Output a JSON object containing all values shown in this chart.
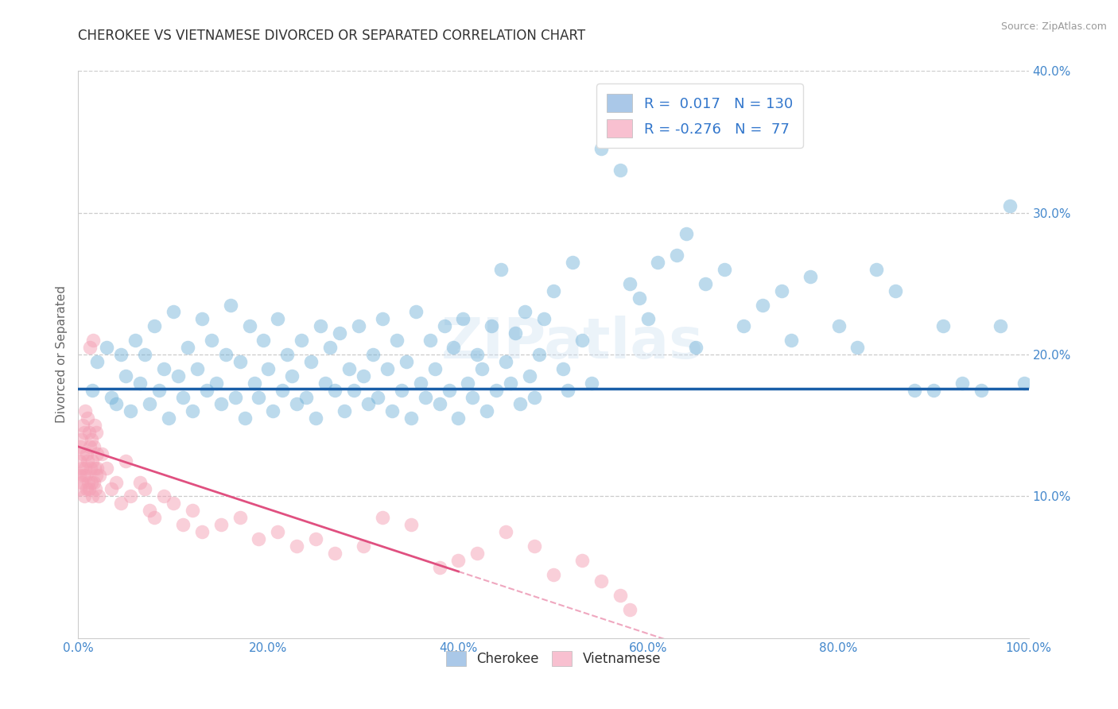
{
  "title": "CHEROKEE VS VIETNAMESE DIVORCED OR SEPARATED CORRELATION CHART",
  "source": "Source: ZipAtlas.com",
  "ylabel": "Divorced or Separated",
  "xlim": [
    0.0,
    100.0
  ],
  "ylim": [
    0.0,
    40.0
  ],
  "xticks": [
    0.0,
    20.0,
    40.0,
    60.0,
    80.0,
    100.0
  ],
  "yticks": [
    0.0,
    10.0,
    20.0,
    30.0,
    40.0
  ],
  "xtick_labels": [
    "0.0%",
    "20.0%",
    "40.0%",
    "60.0%",
    "80.0%",
    "100.0%"
  ],
  "ytick_labels": [
    "",
    "10.0%",
    "20.0%",
    "30.0%",
    "40.0%"
  ],
  "blue_R": "0.017",
  "blue_N": "130",
  "pink_R": "-0.276",
  "pink_N": "77",
  "blue_dot_color": "#6baed6",
  "pink_dot_color": "#f4a0b5",
  "blue_line_color": "#1a5fa8",
  "pink_line_color": "#e05080",
  "tick_label_color": "#4488cc",
  "watermark": "ZIPatlas",
  "legend_blue_label": "Cherokee",
  "legend_pink_label": "Vietnamese",
  "blue_scatter": [
    [
      1.5,
      17.5
    ],
    [
      2.0,
      19.5
    ],
    [
      3.0,
      20.5
    ],
    [
      3.5,
      17.0
    ],
    [
      4.0,
      16.5
    ],
    [
      4.5,
      20.0
    ],
    [
      5.0,
      18.5
    ],
    [
      5.5,
      16.0
    ],
    [
      6.0,
      21.0
    ],
    [
      6.5,
      18.0
    ],
    [
      7.0,
      20.0
    ],
    [
      7.5,
      16.5
    ],
    [
      8.0,
      22.0
    ],
    [
      8.5,
      17.5
    ],
    [
      9.0,
      19.0
    ],
    [
      9.5,
      15.5
    ],
    [
      10.0,
      23.0
    ],
    [
      10.5,
      18.5
    ],
    [
      11.0,
      17.0
    ],
    [
      11.5,
      20.5
    ],
    [
      12.0,
      16.0
    ],
    [
      12.5,
      19.0
    ],
    [
      13.0,
      22.5
    ],
    [
      13.5,
      17.5
    ],
    [
      14.0,
      21.0
    ],
    [
      14.5,
      18.0
    ],
    [
      15.0,
      16.5
    ],
    [
      15.5,
      20.0
    ],
    [
      16.0,
      23.5
    ],
    [
      16.5,
      17.0
    ],
    [
      17.0,
      19.5
    ],
    [
      17.5,
      15.5
    ],
    [
      18.0,
      22.0
    ],
    [
      18.5,
      18.0
    ],
    [
      19.0,
      17.0
    ],
    [
      19.5,
      21.0
    ],
    [
      20.0,
      19.0
    ],
    [
      20.5,
      16.0
    ],
    [
      21.0,
      22.5
    ],
    [
      21.5,
      17.5
    ],
    [
      22.0,
      20.0
    ],
    [
      22.5,
      18.5
    ],
    [
      23.0,
      16.5
    ],
    [
      23.5,
      21.0
    ],
    [
      24.0,
      17.0
    ],
    [
      24.5,
      19.5
    ],
    [
      25.0,
      15.5
    ],
    [
      25.5,
      22.0
    ],
    [
      26.0,
      18.0
    ],
    [
      26.5,
      20.5
    ],
    [
      27.0,
      17.5
    ],
    [
      27.5,
      21.5
    ],
    [
      28.0,
      16.0
    ],
    [
      28.5,
      19.0
    ],
    [
      29.0,
      17.5
    ],
    [
      29.5,
      22.0
    ],
    [
      30.0,
      18.5
    ],
    [
      30.5,
      16.5
    ],
    [
      31.0,
      20.0
    ],
    [
      31.5,
      17.0
    ],
    [
      32.0,
      22.5
    ],
    [
      32.5,
      19.0
    ],
    [
      33.0,
      16.0
    ],
    [
      33.5,
      21.0
    ],
    [
      34.0,
      17.5
    ],
    [
      34.5,
      19.5
    ],
    [
      35.0,
      15.5
    ],
    [
      35.5,
      23.0
    ],
    [
      36.0,
      18.0
    ],
    [
      36.5,
      17.0
    ],
    [
      37.0,
      21.0
    ],
    [
      37.5,
      19.0
    ],
    [
      38.0,
      16.5
    ],
    [
      38.5,
      22.0
    ],
    [
      39.0,
      17.5
    ],
    [
      39.5,
      20.5
    ],
    [
      40.0,
      15.5
    ],
    [
      40.5,
      22.5
    ],
    [
      41.0,
      18.0
    ],
    [
      41.5,
      17.0
    ],
    [
      42.0,
      20.0
    ],
    [
      42.5,
      19.0
    ],
    [
      43.0,
      16.0
    ],
    [
      43.5,
      22.0
    ],
    [
      44.0,
      17.5
    ],
    [
      44.5,
      26.0
    ],
    [
      45.0,
      19.5
    ],
    [
      45.5,
      18.0
    ],
    [
      46.0,
      21.5
    ],
    [
      46.5,
      16.5
    ],
    [
      47.0,
      23.0
    ],
    [
      47.5,
      18.5
    ],
    [
      48.0,
      17.0
    ],
    [
      48.5,
      20.0
    ],
    [
      49.0,
      22.5
    ],
    [
      50.0,
      24.5
    ],
    [
      51.0,
      19.0
    ],
    [
      51.5,
      17.5
    ],
    [
      52.0,
      26.5
    ],
    [
      53.0,
      21.0
    ],
    [
      54.0,
      18.0
    ],
    [
      55.0,
      34.5
    ],
    [
      57.0,
      33.0
    ],
    [
      58.0,
      25.0
    ],
    [
      59.0,
      24.0
    ],
    [
      60.0,
      22.5
    ],
    [
      61.0,
      26.5
    ],
    [
      63.0,
      27.0
    ],
    [
      64.0,
      28.5
    ],
    [
      65.0,
      20.5
    ],
    [
      66.0,
      25.0
    ],
    [
      68.0,
      26.0
    ],
    [
      70.0,
      22.0
    ],
    [
      72.0,
      23.5
    ],
    [
      74.0,
      24.5
    ],
    [
      75.0,
      21.0
    ],
    [
      77.0,
      25.5
    ],
    [
      80.0,
      22.0
    ],
    [
      82.0,
      20.5
    ],
    [
      84.0,
      26.0
    ],
    [
      86.0,
      24.5
    ],
    [
      88.0,
      17.5
    ],
    [
      90.0,
      17.5
    ],
    [
      91.0,
      22.0
    ],
    [
      93.0,
      18.0
    ],
    [
      95.0,
      17.5
    ],
    [
      97.0,
      22.0
    ],
    [
      98.0,
      30.5
    ],
    [
      99.5,
      18.0
    ]
  ],
  "pink_scatter": [
    [
      0.1,
      11.5
    ],
    [
      0.15,
      12.5
    ],
    [
      0.2,
      13.5
    ],
    [
      0.25,
      10.5
    ],
    [
      0.3,
      14.0
    ],
    [
      0.35,
      11.0
    ],
    [
      0.4,
      12.0
    ],
    [
      0.45,
      13.0
    ],
    [
      0.5,
      15.0
    ],
    [
      0.55,
      11.5
    ],
    [
      0.6,
      10.0
    ],
    [
      0.65,
      14.5
    ],
    [
      0.7,
      12.0
    ],
    [
      0.75,
      16.0
    ],
    [
      0.8,
      11.5
    ],
    [
      0.85,
      13.0
    ],
    [
      0.9,
      10.5
    ],
    [
      0.95,
      15.5
    ],
    [
      1.0,
      12.5
    ],
    [
      1.05,
      11.0
    ],
    [
      1.1,
      14.5
    ],
    [
      1.15,
      10.5
    ],
    [
      1.2,
      13.5
    ],
    [
      1.25,
      20.5
    ],
    [
      1.3,
      12.0
    ],
    [
      1.35,
      11.0
    ],
    [
      1.4,
      14.0
    ],
    [
      1.45,
      10.0
    ],
    [
      1.5,
      12.5
    ],
    [
      1.55,
      21.0
    ],
    [
      1.6,
      13.5
    ],
    [
      1.65,
      11.0
    ],
    [
      1.7,
      15.0
    ],
    [
      1.75,
      12.0
    ],
    [
      1.8,
      10.5
    ],
    [
      1.85,
      14.5
    ],
    [
      1.9,
      11.5
    ],
    [
      1.95,
      13.0
    ],
    [
      2.0,
      12.0
    ],
    [
      2.1,
      10.0
    ],
    [
      2.2,
      11.5
    ],
    [
      2.5,
      13.0
    ],
    [
      3.0,
      12.0
    ],
    [
      3.5,
      10.5
    ],
    [
      4.0,
      11.0
    ],
    [
      4.5,
      9.5
    ],
    [
      5.0,
      12.5
    ],
    [
      5.5,
      10.0
    ],
    [
      6.5,
      11.0
    ],
    [
      7.0,
      10.5
    ],
    [
      7.5,
      9.0
    ],
    [
      8.0,
      8.5
    ],
    [
      9.0,
      10.0
    ],
    [
      10.0,
      9.5
    ],
    [
      11.0,
      8.0
    ],
    [
      12.0,
      9.0
    ],
    [
      13.0,
      7.5
    ],
    [
      15.0,
      8.0
    ],
    [
      17.0,
      8.5
    ],
    [
      19.0,
      7.0
    ],
    [
      21.0,
      7.5
    ],
    [
      23.0,
      6.5
    ],
    [
      25.0,
      7.0
    ],
    [
      27.0,
      6.0
    ],
    [
      30.0,
      6.5
    ],
    [
      32.0,
      8.5
    ],
    [
      35.0,
      8.0
    ],
    [
      38.0,
      5.0
    ],
    [
      40.0,
      5.5
    ],
    [
      42.0,
      6.0
    ],
    [
      45.0,
      7.5
    ],
    [
      48.0,
      6.5
    ],
    [
      50.0,
      4.5
    ],
    [
      53.0,
      5.5
    ],
    [
      55.0,
      4.0
    ],
    [
      57.0,
      3.0
    ],
    [
      58.0,
      2.0
    ]
  ],
  "pink_solid_xmax": 40.0,
  "blue_line_intercept": 17.6,
  "blue_line_slope": 0.0,
  "pink_line_intercept": 13.5,
  "pink_line_slope": -0.22
}
